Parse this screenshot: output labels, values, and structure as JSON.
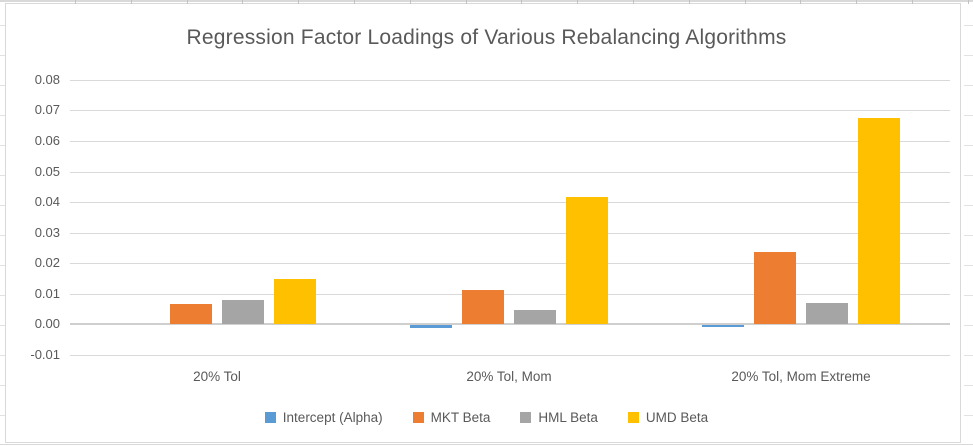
{
  "chart_data": {
    "type": "bar",
    "title": "Regression Factor Loadings of Various Rebalancing Algorithms",
    "categories": [
      "20% Tol",
      "20% Tol, Mom",
      "20% Tol, Mom Extreme"
    ],
    "series": [
      {
        "name": "Intercept (Alpha)",
        "color": "#5B9BD5",
        "values": [
          0.0001,
          -0.001,
          -0.0005
        ]
      },
      {
        "name": "MKT Beta",
        "color": "#ED7D31",
        "values": [
          0.0065,
          0.011,
          0.0235
        ]
      },
      {
        "name": "HML Beta",
        "color": "#A5A5A5",
        "values": [
          0.008,
          0.0045,
          0.007
        ]
      },
      {
        "name": "UMD Beta",
        "color": "#FFC000",
        "values": [
          0.0148,
          0.0415,
          0.0675
        ]
      }
    ],
    "ylim": [
      -0.01,
      0.08
    ],
    "y_tick_step": 0.01,
    "y_tick_labels": [
      "0.08",
      "0.07",
      "0.06",
      "0.05",
      "0.04",
      "0.03",
      "0.02",
      "0.01",
      "0.00",
      "-0.01"
    ],
    "grid": true,
    "legend_position": "bottom"
  },
  "colors": {
    "text": "#595959",
    "gridline": "#D9D9D9",
    "axis_line": "#CFCFCF",
    "chart_border": "#D9D9D9",
    "background": "#FFFFFF"
  }
}
